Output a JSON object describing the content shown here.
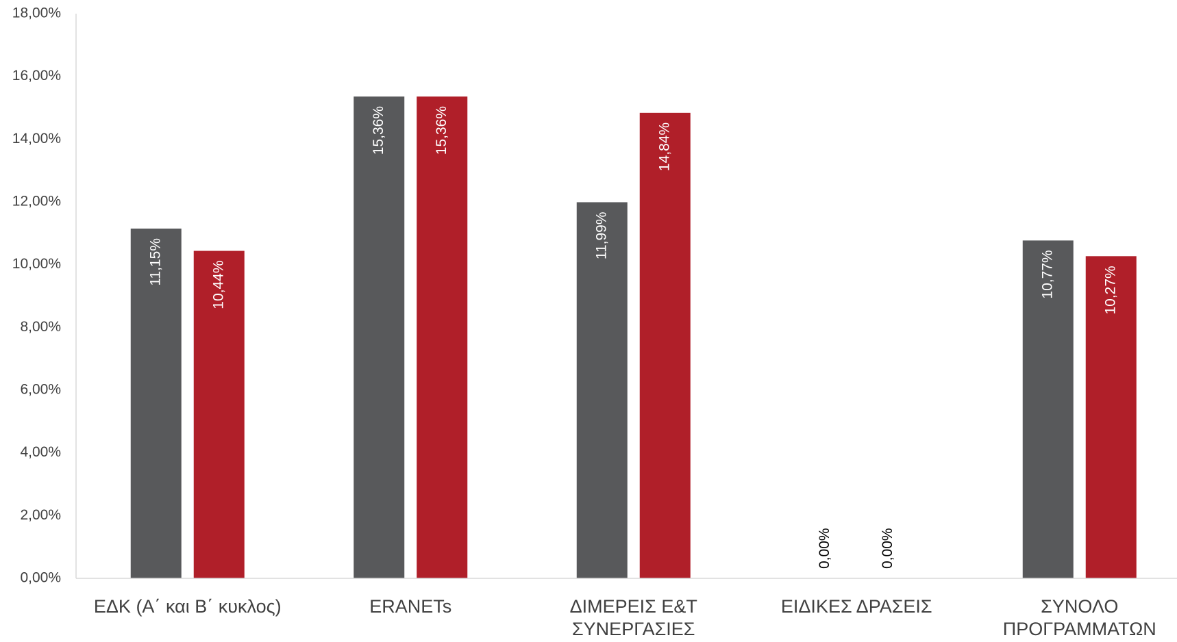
{
  "chart_data": {
    "type": "bar",
    "categories": [
      [
        "ΕΔΚ (Α΄ και Β΄ κυκλος)"
      ],
      [
        "ERANETs"
      ],
      [
        "ΔΙΜΕΡΕΙΣ Ε&Τ",
        "ΣΥΝΕΡΓΑΣΙΕΣ"
      ],
      [
        "ΕΙΔΙΚΕΣ ΔΡΑΣΕΙΣ"
      ],
      [
        "ΣΥΝΟΛΟ",
        "ΠΡΟΓΡΑΜΜΑΤΩΝ"
      ]
    ],
    "series": [
      {
        "values": [
          11.15,
          15.36,
          11.99,
          0.0,
          10.77
        ],
        "labels": [
          "11,15%",
          "15,36%",
          "11,99%",
          "0,00%",
          "10,77%"
        ],
        "color": "#58595b"
      },
      {
        "values": [
          10.44,
          15.36,
          14.84,
          0.0,
          10.27
        ],
        "labels": [
          "10,44%",
          "15,36%",
          "14,84%",
          "0,00%",
          "10,27%"
        ],
        "color": "#b01f29"
      }
    ],
    "ylim": [
      0,
      18
    ],
    "yticks": [
      0,
      2,
      4,
      6,
      8,
      10,
      12,
      14,
      16,
      18
    ],
    "ytick_labels": [
      "0,00%",
      "2,00%",
      "4,00%",
      "6,00%",
      "8,00%",
      "10,00%",
      "12,00%",
      "14,00%",
      "16,00%",
      "18,00%"
    ],
    "title": "",
    "xlabel": "",
    "ylabel": "",
    "grid": false,
    "legend": "none",
    "data_labels": "inside-end rotated vertical",
    "colors": {
      "label_on_bar": "#ffffff",
      "label_zero": "#000000",
      "tick_text": "#404040",
      "axis": "#d9d9d9"
    }
  }
}
